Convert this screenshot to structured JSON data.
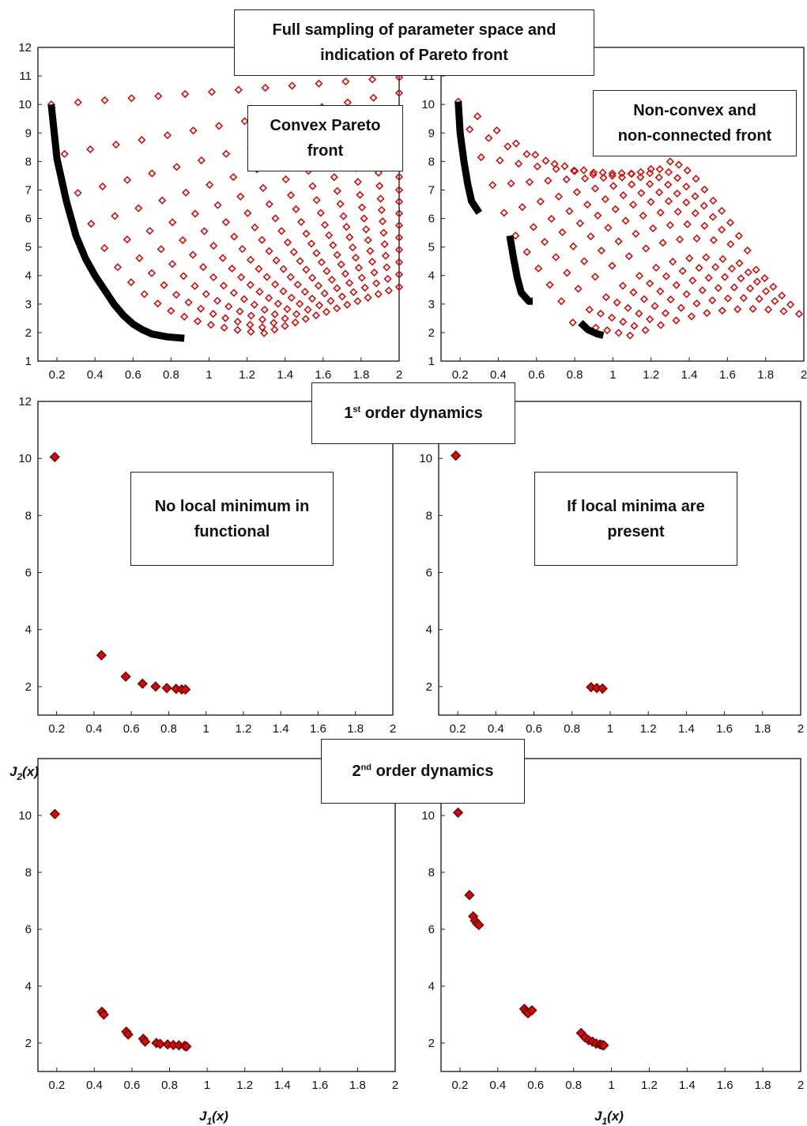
{
  "banners": {
    "full_sampling": "Full sampling of parameter space and\nindication of Pareto front",
    "first_order_ord": "1",
    "first_order_sup": "st",
    "first_order_rest": " order dynamics",
    "second_order_ord": "2",
    "second_order_sup": "nd",
    "second_order_rest": " order dynamics"
  },
  "notes": {
    "convex": "Convex Pareto\nfront",
    "nonconvex": "Non-convex and\nnon-connected front",
    "no_local_min": "No local minimum in\nfunctional",
    "local_minima": "If local minima are\npresent"
  },
  "colors": {
    "marker": "#c81010",
    "marker_dark": "#7a0000",
    "front": "#000000"
  },
  "chart_data": [
    {
      "type": "scatter",
      "id": "full-convex",
      "xlim": [
        0.1,
        2
      ],
      "ylim": [
        1,
        12
      ],
      "xticks": [
        "0.2",
        "0.4",
        "0.6",
        "0.8",
        "1",
        "1.2",
        "1.4",
        "1.6",
        "1.8",
        "2"
      ],
      "yticks": [
        "1",
        "2",
        "3",
        "4",
        "5",
        "6",
        "7",
        "8",
        "9",
        "10",
        "11",
        "12"
      ],
      "sampled": "full parameter sweep",
      "pareto_front": [
        [
          0.17,
          10.0
        ],
        [
          0.2,
          8.1
        ],
        [
          0.25,
          6.6
        ],
        [
          0.3,
          5.4
        ],
        [
          0.35,
          4.6
        ],
        [
          0.4,
          4.0
        ],
        [
          0.45,
          3.5
        ],
        [
          0.5,
          3.0
        ],
        [
          0.55,
          2.6
        ],
        [
          0.6,
          2.3
        ],
        [
          0.65,
          2.1
        ],
        [
          0.7,
          1.95
        ],
        [
          0.78,
          1.85
        ],
        [
          0.87,
          1.8
        ]
      ],
      "xlabel": "",
      "ylabel": ""
    },
    {
      "type": "scatter",
      "id": "full-nonconvex",
      "xlim": [
        0.1,
        2
      ],
      "ylim": [
        1,
        12
      ],
      "xticks": [
        "0.2",
        "0.4",
        "0.6",
        "0.8",
        "1",
        "1.2",
        "1.4",
        "1.6",
        "1.8",
        "2"
      ],
      "yticks": [
        "1",
        "2",
        "3",
        "4",
        "5",
        "6",
        "7",
        "8",
        "9",
        "10",
        "11"
      ],
      "sampled": "full parameter sweep",
      "pareto_front": [
        [
          [
            0.19,
            10.1
          ],
          [
            0.2,
            9.0
          ],
          [
            0.22,
            8.0
          ],
          [
            0.24,
            7.2
          ],
          [
            0.26,
            6.6
          ],
          [
            0.3,
            6.2
          ]
        ],
        [
          [
            0.46,
            5.4
          ],
          [
            0.48,
            4.6
          ],
          [
            0.5,
            3.9
          ],
          [
            0.52,
            3.4
          ],
          [
            0.56,
            3.1
          ],
          [
            0.58,
            3.1
          ]
        ],
        [
          [
            0.83,
            2.35
          ],
          [
            0.87,
            2.1
          ],
          [
            0.92,
            1.95
          ],
          [
            0.95,
            1.9
          ]
        ]
      ],
      "xlabel": "",
      "ylabel": ""
    },
    {
      "type": "scatter",
      "id": "first-order-left",
      "xlim": [
        0.1,
        2
      ],
      "ylim": [
        1,
        12
      ],
      "xticks": [
        "0.2",
        "0.4",
        "0.6",
        "0.8",
        "1",
        "1.2",
        "1.4",
        "1.6",
        "1.8",
        "2"
      ],
      "yticks": [
        "2",
        "4",
        "6",
        "8",
        "10",
        "12"
      ],
      "points": [
        [
          0.19,
          10.05
        ],
        [
          0.44,
          3.1
        ],
        [
          0.57,
          2.35
        ],
        [
          0.66,
          2.1
        ],
        [
          0.73,
          2.0
        ],
        [
          0.79,
          1.95
        ],
        [
          0.84,
          1.92
        ],
        [
          0.87,
          1.9
        ],
        [
          0.89,
          1.9
        ]
      ],
      "xlabel": "",
      "ylabel": ""
    },
    {
      "type": "scatter",
      "id": "first-order-right",
      "xlim": [
        0.1,
        2
      ],
      "ylim": [
        1,
        12
      ],
      "xticks": [
        "0.2",
        "0.4",
        "0.6",
        "0.8",
        "1",
        "1.2",
        "1.4",
        "1.6",
        "1.8",
        "2"
      ],
      "yticks": [
        "2",
        "4",
        "6",
        "8",
        "10"
      ],
      "points": [
        [
          0.19,
          10.1
        ],
        [
          0.9,
          1.98
        ],
        [
          0.93,
          1.95
        ],
        [
          0.96,
          1.93
        ]
      ],
      "xlabel": "",
      "ylabel": ""
    },
    {
      "type": "scatter",
      "id": "second-order-left",
      "xlim": [
        0.1,
        2
      ],
      "ylim": [
        1,
        12
      ],
      "xticks": [
        "0.2",
        "0.4",
        "0.6",
        "0.8",
        "1",
        "1.2",
        "1.4",
        "1.6",
        "1.8",
        "2"
      ],
      "yticks": [
        "2",
        "4",
        "6",
        "8",
        "10"
      ],
      "points": [
        [
          0.19,
          10.05
        ],
        [
          0.44,
          3.1
        ],
        [
          0.45,
          3.0
        ],
        [
          0.57,
          2.4
        ],
        [
          0.58,
          2.3
        ],
        [
          0.66,
          2.15
        ],
        [
          0.67,
          2.05
        ],
        [
          0.73,
          2.0
        ],
        [
          0.75,
          1.97
        ],
        [
          0.79,
          1.95
        ],
        [
          0.82,
          1.93
        ],
        [
          0.85,
          1.92
        ],
        [
          0.88,
          1.9
        ],
        [
          0.89,
          1.88
        ]
      ],
      "xlabel": "J1(x)",
      "ylabel": "J2(x)"
    },
    {
      "type": "scatter",
      "id": "second-order-right",
      "xlim": [
        0.1,
        2
      ],
      "ylim": [
        1,
        12
      ],
      "xticks": [
        "0.2",
        "0.4",
        "0.6",
        "0.8",
        "1",
        "1.2",
        "1.4",
        "1.6",
        "1.8",
        "2"
      ],
      "yticks": [
        "2",
        "4",
        "6",
        "8",
        "10"
      ],
      "points": [
        [
          0.19,
          10.1
        ],
        [
          0.25,
          7.2
        ],
        [
          0.27,
          6.45
        ],
        [
          0.28,
          6.3
        ],
        [
          0.29,
          6.2
        ],
        [
          0.3,
          6.15
        ],
        [
          0.54,
          3.2
        ],
        [
          0.55,
          3.1
        ],
        [
          0.56,
          3.05
        ],
        [
          0.58,
          3.15
        ],
        [
          0.84,
          2.35
        ],
        [
          0.86,
          2.2
        ],
        [
          0.88,
          2.1
        ],
        [
          0.9,
          2.05
        ],
        [
          0.92,
          1.98
        ],
        [
          0.94,
          1.95
        ],
        [
          0.95,
          1.93
        ],
        [
          0.96,
          1.92
        ]
      ],
      "xlabel": "J1(x)",
      "ylabel": ""
    }
  ],
  "axis_labels": {
    "x_left": "J",
    "x_left_sub": "1",
    "x_left_tail": "(x)",
    "x_right": "J",
    "x_right_sub": "1",
    "x_right_tail": "(x)",
    "y": "J",
    "y_sub": "2",
    "y_tail": "(x)"
  }
}
